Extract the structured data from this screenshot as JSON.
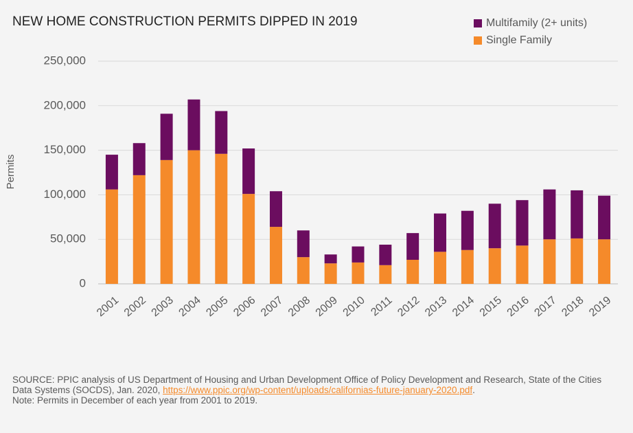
{
  "chart_data": {
    "type": "stacked_bar",
    "title": "NEW HOME CONSTRUCTION PERMITS DIPPED IN 2019",
    "y_label": "Permits",
    "categories": [
      "2001",
      "2002",
      "2003",
      "2004",
      "2005",
      "2006",
      "2007",
      "2008",
      "2009",
      "2010",
      "2011",
      "2012",
      "2013",
      "2014",
      "2015",
      "2016",
      "2017",
      "2018",
      "2019"
    ],
    "series": [
      {
        "name": "Single Family",
        "color": "#f58a2a",
        "values": [
          106000,
          122000,
          139000,
          150000,
          146000,
          101000,
          64000,
          30000,
          23000,
          24000,
          21000,
          27000,
          36000,
          38000,
          40000,
          43000,
          50000,
          51000,
          50000
        ]
      },
      {
        "name": "Multifamily (2+ units)",
        "color": "#6b0d5f",
        "values": [
          39000,
          36000,
          52000,
          57000,
          48000,
          51000,
          40000,
          30000,
          10000,
          18000,
          23000,
          30000,
          43000,
          44000,
          50000,
          51000,
          56000,
          54000,
          49000
        ]
      }
    ],
    "ylim": [
      0,
      250000
    ],
    "yticks": [
      0,
      {
        "value": 50000,
        "label": "50,000"
      },
      {
        "value": 100000,
        "label": "100,000"
      },
      {
        "value": 150000,
        "label": "150,000"
      },
      {
        "value": 200000,
        "label": "200,000"
      },
      {
        "value": 250000,
        "label": "250,000"
      }
    ],
    "grid": true,
    "legend": "top-right"
  },
  "source": {
    "text": "SOURCE: PPIC analysis of US Department of Housing and Urban Development Office of Policy Development and Research, State of the Cities Data Systems (SOCDS), Jan. 2020, ",
    "link": "https://www.ppic.org/wp-content/uploads/californias-future-january-2020.pdf",
    "end": "."
  },
  "note": "Note: Permits in December of each year from 2001 to 2019."
}
